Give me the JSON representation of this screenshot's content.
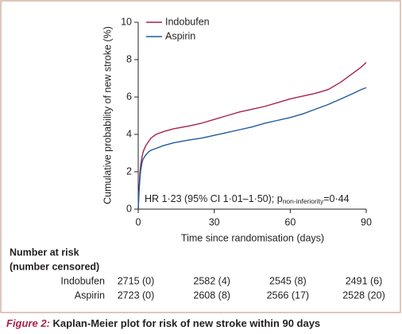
{
  "chart_data": {
    "type": "line",
    "x_label": "Time since randomisation (days)",
    "y_label": "Cumulative probability of new stroke (%)",
    "x": [
      0,
      0.3,
      0.7,
      1,
      1.5,
      2,
      3,
      4,
      5,
      7,
      10,
      14,
      20,
      25,
      30,
      35,
      40,
      45,
      50,
      55,
      60,
      65,
      70,
      75,
      80,
      85,
      88,
      90
    ],
    "series": [
      {
        "name": "Indobufen",
        "color": "#a8224a",
        "values": [
          0,
          1.0,
          2.0,
          2.4,
          2.8,
          3.1,
          3.4,
          3.6,
          3.8,
          4.0,
          4.15,
          4.3,
          4.45,
          4.6,
          4.8,
          5.0,
          5.2,
          5.35,
          5.5,
          5.7,
          5.9,
          6.05,
          6.2,
          6.4,
          6.8,
          7.3,
          7.6,
          7.85
        ]
      },
      {
        "name": "Aspirin",
        "color": "#1f5c99",
        "values": [
          0,
          0.9,
          1.7,
          2.1,
          2.5,
          2.7,
          2.9,
          3.05,
          3.15,
          3.25,
          3.4,
          3.55,
          3.7,
          3.8,
          3.95,
          4.1,
          4.25,
          4.4,
          4.6,
          4.75,
          4.9,
          5.1,
          5.35,
          5.6,
          5.9,
          6.2,
          6.4,
          6.5
        ]
      }
    ],
    "xlim": [
      0,
      90
    ],
    "xticks": [
      0,
      30,
      60,
      90
    ],
    "ylim": [
      0,
      10
    ],
    "yticks": [
      0,
      2,
      4,
      6,
      8,
      10
    ],
    "legend": "top-left",
    "annotation": {
      "main": "HR 1·23 (95% CI 1·01–1·50); p",
      "subscript": "non-inferiority",
      "tail": "=0·44"
    },
    "risk_table": {
      "title": [
        "Number at risk",
        "(number censored)"
      ],
      "rows": [
        [
          "2715 (0)",
          "2582 (4)",
          "2545 (8)",
          "2491 (6)"
        ],
        [
          "2723 (0)",
          "2608 (8)",
          "2566 (17)",
          "2528 (20)"
        ]
      ]
    }
  },
  "caption": {
    "label": "Figure 2:",
    "text": "Kaplan-Meier plot for risk of new stroke within 90 days"
  }
}
